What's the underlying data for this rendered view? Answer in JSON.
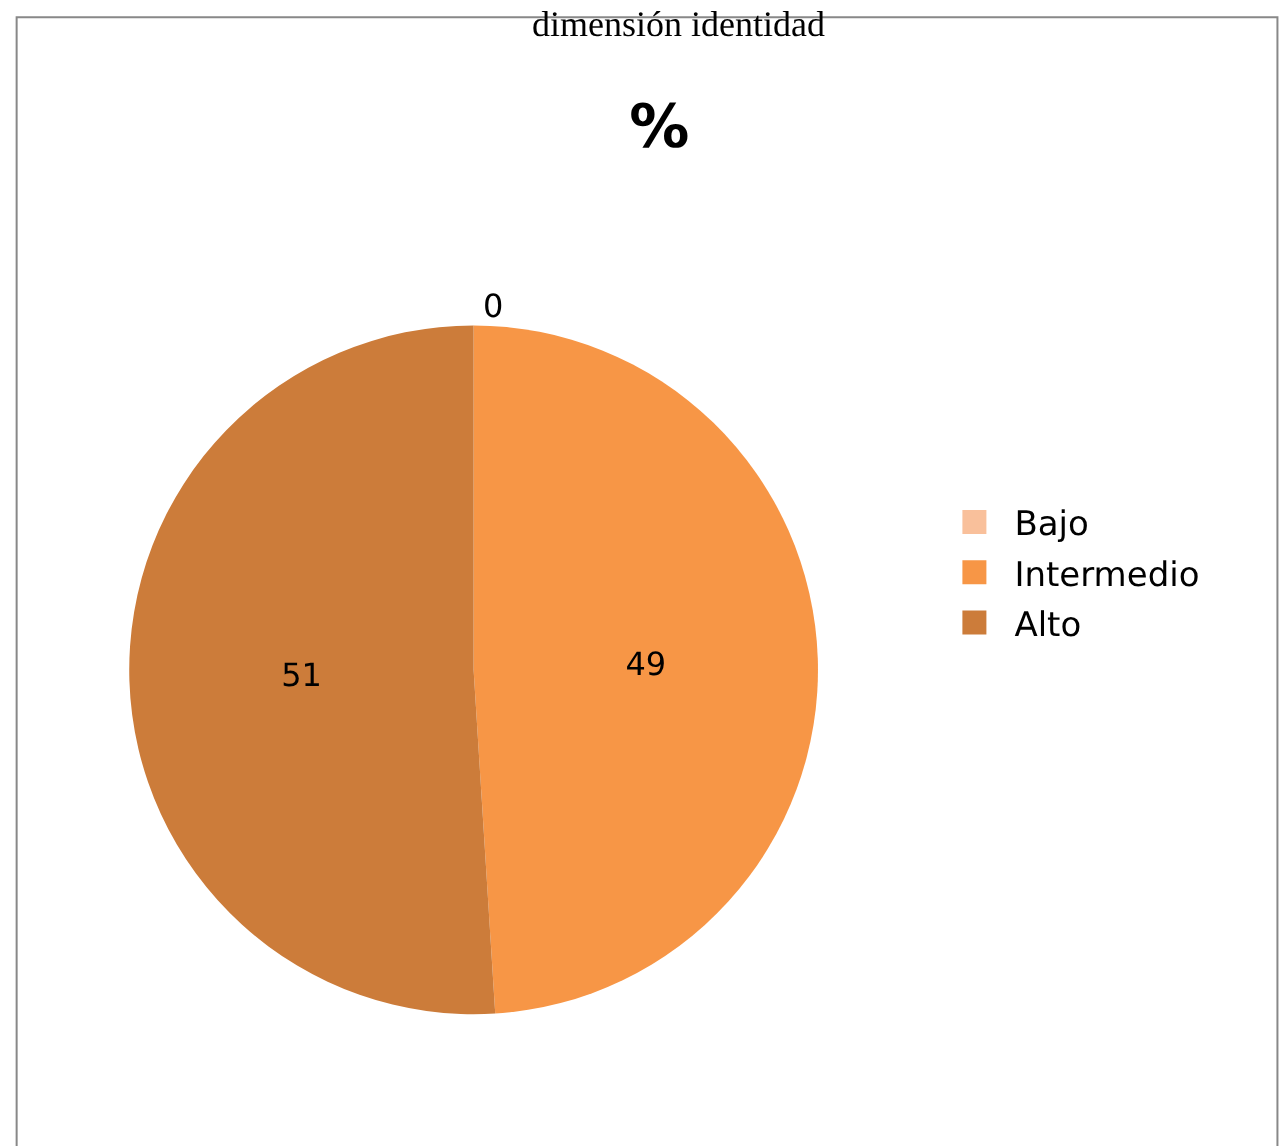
{
  "chart_data": {
    "type": "pie",
    "title": "%",
    "annotations": [
      "dimensión identidad"
    ],
    "categories": [
      "Bajo",
      "Intermedio",
      "Alto"
    ],
    "values": [
      0,
      49,
      51
    ],
    "colors": [
      "#f9c09b",
      "#f79646",
      "#cc7c3a"
    ],
    "value_labels": [
      "0",
      "49",
      "51"
    ],
    "legend": "right"
  }
}
